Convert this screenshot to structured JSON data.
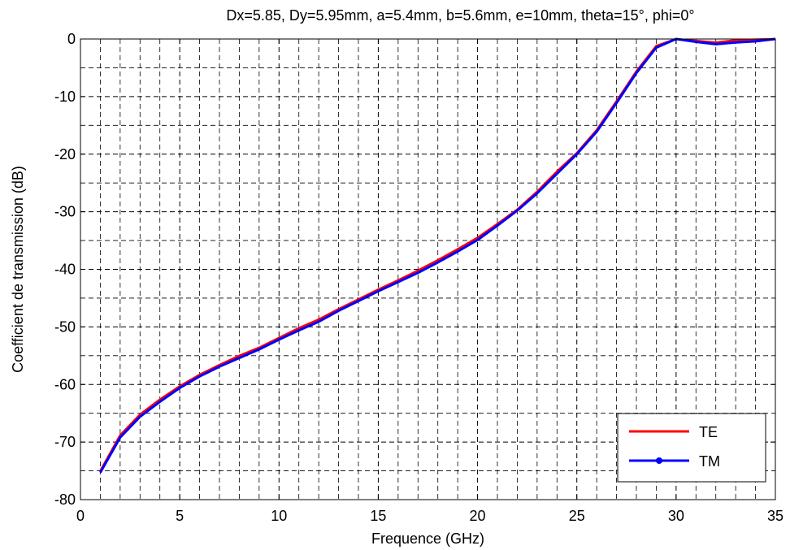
{
  "chart_data": {
    "type": "line",
    "title": "Dx=5.85, Dy=5.95mm, a=5.4mm, b=5.6mm, e=10mm, theta=15°, phi=0°",
    "xlabel": "Frequence (GHz)",
    "ylabel": "Coefficient de transmission (dB)",
    "xlim": [
      0,
      35
    ],
    "ylim": [
      -80,
      0
    ],
    "xticks": [
      0,
      5,
      10,
      15,
      20,
      25,
      30,
      35
    ],
    "yticks": [
      -80,
      -70,
      -60,
      -50,
      -40,
      -30,
      -20,
      -10,
      0
    ],
    "grid": true,
    "legend": "bottom-right",
    "series": [
      {
        "name": "TE",
        "color": "#ff0000",
        "marker": "none",
        "x": [
          1,
          2,
          3,
          4,
          5,
          6,
          7,
          8,
          9,
          10,
          11,
          12,
          13,
          14,
          15,
          16,
          17,
          18,
          19,
          20,
          21,
          22,
          23,
          24,
          25,
          26,
          27,
          28,
          29,
          30,
          31,
          32,
          33,
          34,
          35
        ],
        "y": [
          -75,
          -68.8,
          -65.2,
          -62.6,
          -60.3,
          -58.3,
          -56.6,
          -55,
          -53.6,
          -51.9,
          -50.2,
          -48.7,
          -46.9,
          -45.2,
          -43.5,
          -41.9,
          -40.2,
          -38.4,
          -36.5,
          -34.5,
          -32.1,
          -29.6,
          -26.5,
          -23,
          -19.8,
          -15.8,
          -10.8,
          -5.6,
          -1.2,
          0,
          -0.3,
          -0.6,
          -0.2,
          -0.1,
          0
        ]
      },
      {
        "name": "TM",
        "color": "#0000ff",
        "marker": "dot",
        "x": [
          1,
          2,
          3,
          4,
          5,
          6,
          7,
          8,
          9,
          10,
          11,
          12,
          13,
          14,
          15,
          16,
          17,
          18,
          19,
          20,
          21,
          22,
          23,
          24,
          25,
          26,
          27,
          28,
          29,
          30,
          31,
          32,
          33,
          34,
          35
        ],
        "y": [
          -75.3,
          -69.2,
          -65.6,
          -63,
          -60.6,
          -58.6,
          -56.9,
          -55.4,
          -53.9,
          -52.2,
          -50.6,
          -49.1,
          -47.2,
          -45.5,
          -43.8,
          -42.2,
          -40.6,
          -38.8,
          -36.9,
          -34.9,
          -32.4,
          -29.8,
          -26.8,
          -23.4,
          -20,
          -16.1,
          -11.1,
          -5.9,
          -1.5,
          0,
          -0.5,
          -0.9,
          -0.6,
          -0.4,
          0
        ]
      }
    ]
  }
}
